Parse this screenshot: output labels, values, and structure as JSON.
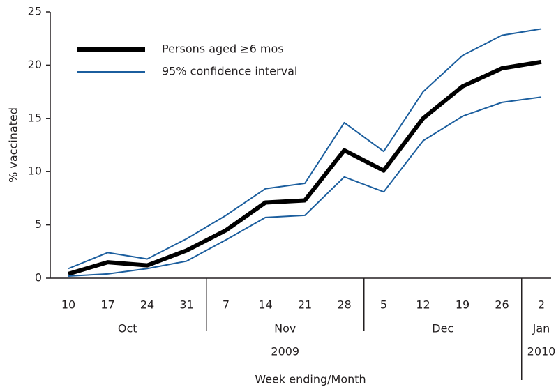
{
  "chart_data": {
    "type": "line",
    "x_label": "Week ending/Month",
    "y_label": "% vaccinated",
    "categories": [
      "10",
      "17",
      "24",
      "31",
      "7",
      "14",
      "21",
      "28",
      "5",
      "12",
      "19",
      "26",
      "2"
    ],
    "category_months": [
      "Oct",
      "Oct",
      "Oct",
      "Oct",
      "Nov",
      "Nov",
      "Nov",
      "Nov",
      "Dec",
      "Dec",
      "Dec",
      "Dec",
      "Jan"
    ],
    "category_years": [
      "2009",
      "2009",
      "2009",
      "2009",
      "2009",
      "2009",
      "2009",
      "2009",
      "2009",
      "2009",
      "2009",
      "2009",
      "2010"
    ],
    "series": [
      {
        "name": "Persons aged ≥6 mos",
        "color": "#000000",
        "values": [
          0.4,
          1.5,
          1.2,
          2.6,
          4.5,
          7.1,
          7.3,
          12.0,
          10.1,
          15.0,
          18.0,
          19.7,
          20.3
        ]
      },
      {
        "name": "95% confidence interval",
        "color": "#1b5e9e",
        "upper": [
          0.9,
          2.4,
          1.8,
          3.7,
          5.9,
          8.4,
          8.9,
          14.6,
          11.9,
          17.5,
          20.9,
          22.8,
          23.4
        ],
        "lower": [
          0.2,
          0.4,
          0.9,
          1.6,
          3.6,
          5.7,
          5.9,
          9.5,
          8.1,
          12.9,
          15.2,
          16.5,
          17.0
        ]
      }
    ],
    "ylim": [
      0,
      25
    ],
    "yticks": [
      0,
      5,
      10,
      15,
      20,
      25
    ],
    "legend": "upper left"
  }
}
